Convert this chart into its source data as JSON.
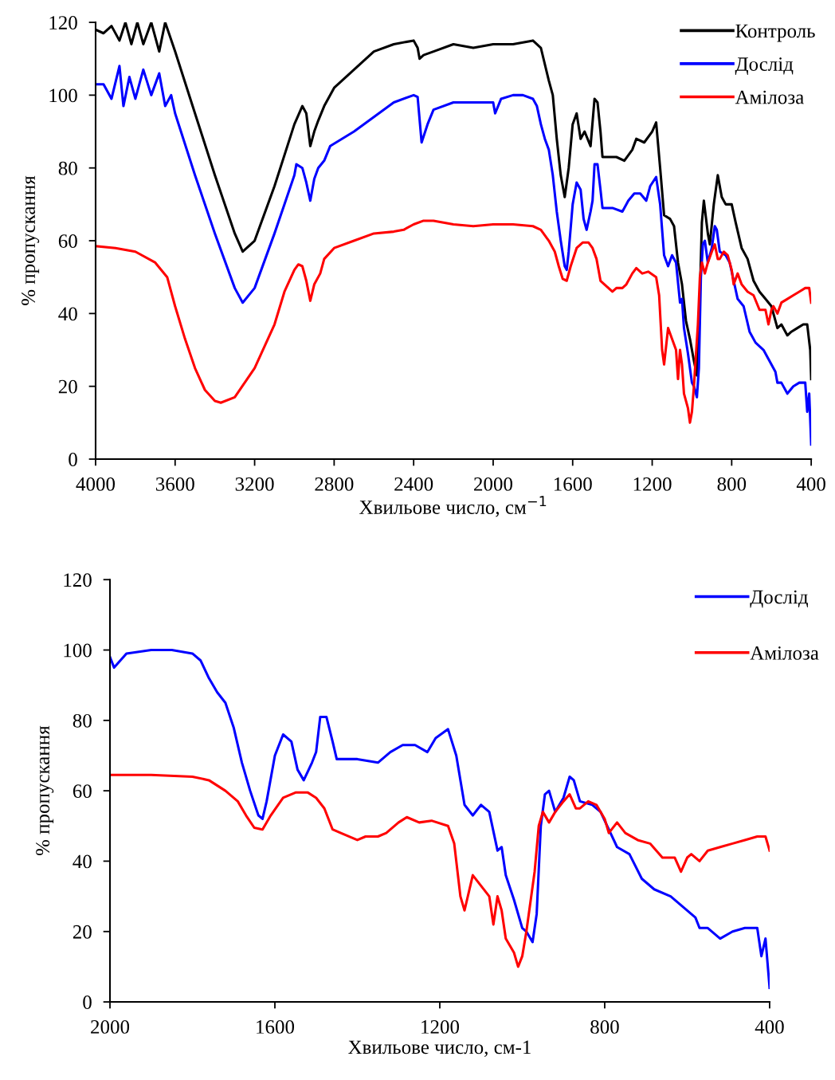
{
  "chart_data": [
    {
      "type": "line",
      "xlabel": "Хвильове число, см$^{−1}$",
      "ylabel": "% пропускання",
      "xlim": [
        4000,
        400
      ],
      "xticks": [
        4000,
        3600,
        3200,
        2800,
        2400,
        2000,
        1600,
        1200,
        800,
        400
      ],
      "ylim": [
        0,
        120
      ],
      "yticks": [
        0,
        20,
        40,
        60,
        80,
        100,
        120
      ],
      "grid": false,
      "legend": "top right",
      "marker": "none",
      "line_style": "solid",
      "series": [
        {
          "name": "Контроль",
          "color": "#000000",
          "x": [
            4000,
            3960,
            3920,
            3880,
            3850,
            3820,
            3790,
            3760,
            3720,
            3680,
            3650,
            3600,
            3500,
            3400,
            3300,
            3260,
            3200,
            3100,
            3000,
            2960,
            2940,
            2920,
            2900,
            2880,
            2850,
            2800,
            2700,
            2600,
            2500,
            2400,
            2380,
            2370,
            2350,
            2300,
            2200,
            2100,
            2000,
            1900,
            1800,
            1760,
            1720,
            1700,
            1680,
            1660,
            1640,
            1620,
            1600,
            1580,
            1560,
            1540,
            1510,
            1490,
            1475,
            1460,
            1450,
            1420,
            1380,
            1340,
            1300,
            1280,
            1240,
            1200,
            1180,
            1160,
            1140,
            1110,
            1090,
            1070,
            1050,
            1030,
            1010,
            990,
            975,
            960,
            950,
            940,
            920,
            910,
            890,
            870,
            850,
            830,
            800,
            780,
            750,
            720,
            690,
            660,
            630,
            600,
            570,
            550,
            520,
            500,
            470,
            440,
            420,
            405,
            400
          ],
          "values": [
            118,
            117,
            119,
            115,
            120,
            114,
            120,
            114,
            120,
            112,
            120,
            112,
            95,
            78,
            62,
            57,
            60,
            75,
            92,
            97,
            95,
            86,
            90,
            93,
            97,
            102,
            107,
            112,
            114,
            115,
            113,
            110,
            111,
            112,
            114,
            113,
            114,
            114,
            115,
            113,
            104,
            100,
            88,
            78,
            72,
            80,
            92,
            95,
            88,
            90,
            86,
            99,
            98,
            90,
            83,
            83,
            83,
            82,
            85,
            88,
            87,
            90,
            92.5,
            80,
            67,
            66,
            64,
            54,
            48,
            38,
            33,
            27,
            23,
            45,
            65,
            71,
            62,
            59,
            70,
            78,
            72,
            70,
            70,
            65,
            58,
            55,
            49,
            46,
            44,
            42,
            36,
            37,
            34,
            35,
            36,
            37,
            37,
            30,
            22
          ]
        },
        {
          "name": "Дослід",
          "color": "#0000ff",
          "x": [
            4000,
            3960,
            3920,
            3880,
            3860,
            3830,
            3800,
            3760,
            3720,
            3680,
            3650,
            3620,
            3600,
            3500,
            3400,
            3300,
            3260,
            3200,
            3100,
            3000,
            2990,
            2960,
            2940,
            2920,
            2900,
            2880,
            2850,
            2820,
            2700,
            2600,
            2500,
            2400,
            2380,
            2360,
            2330,
            2300,
            2200,
            2100,
            2000,
            1990,
            1960,
            1900,
            1850,
            1800,
            1780,
            1760,
            1740,
            1720,
            1700,
            1680,
            1660,
            1640,
            1630,
            1620,
            1600,
            1580,
            1560,
            1545,
            1530,
            1510,
            1500,
            1490,
            1475,
            1460,
            1450,
            1430,
            1400,
            1350,
            1320,
            1290,
            1260,
            1230,
            1210,
            1180,
            1160,
            1140,
            1120,
            1100,
            1080,
            1060,
            1050,
            1040,
            1020,
            1000,
            990,
            975,
            965,
            955,
            945,
            935,
            920,
            900,
            885,
            875,
            860,
            830,
            810,
            790,
            770,
            740,
            710,
            680,
            640,
            610,
            580,
            570,
            550,
            520,
            490,
            460,
            430,
            420,
            410,
            400
          ],
          "values": [
            103,
            103,
            99,
            108,
            97,
            105,
            99,
            107,
            100,
            106,
            97,
            100,
            95,
            78,
            62,
            47,
            43,
            47,
            62,
            78,
            81,
            80,
            76,
            71,
            77,
            80,
            82,
            86,
            90,
            94,
            98,
            100,
            99.5,
            87,
            92,
            96,
            98,
            98,
            98,
            95,
            99,
            100,
            100,
            99,
            97,
            92,
            88,
            85,
            78,
            68,
            60,
            53,
            52,
            57,
            70,
            76,
            74,
            66,
            63,
            68,
            71,
            81,
            81,
            74,
            69,
            69,
            69,
            68,
            71,
            73,
            73,
            71,
            75,
            77.5,
            70,
            56,
            53,
            56,
            54,
            43,
            44,
            36,
            29,
            21,
            20,
            17,
            25,
            50,
            59,
            60,
            54,
            58,
            64,
            63,
            57,
            56,
            54,
            49,
            44,
            42,
            35,
            32,
            30,
            27,
            24,
            21,
            21,
            18,
            20,
            21,
            21,
            13,
            18,
            4
          ]
        },
        {
          "name": "Амілоза",
          "color": "#ff0000",
          "x": [
            4000,
            3900,
            3800,
            3700,
            3640,
            3600,
            3550,
            3500,
            3450,
            3400,
            3370,
            3300,
            3200,
            3100,
            3050,
            3000,
            2980,
            2960,
            2940,
            2920,
            2900,
            2870,
            2850,
            2800,
            2700,
            2600,
            2500,
            2450,
            2400,
            2350,
            2300,
            2200,
            2100,
            2000,
            1900,
            1800,
            1760,
            1720,
            1690,
            1670,
            1650,
            1630,
            1610,
            1580,
            1550,
            1520,
            1500,
            1480,
            1460,
            1440,
            1400,
            1380,
            1350,
            1330,
            1300,
            1280,
            1250,
            1220,
            1180,
            1165,
            1150,
            1140,
            1120,
            1100,
            1080,
            1070,
            1060,
            1050,
            1040,
            1020,
            1010,
            1000,
            990,
            970,
            960,
            950,
            935,
            920,
            900,
            885,
            870,
            860,
            840,
            820,
            800,
            790,
            770,
            750,
            720,
            690,
            660,
            630,
            615,
            600,
            590,
            570,
            550,
            520,
            490,
            460,
            430,
            410,
            400
          ],
          "values": [
            58.5,
            58,
            57,
            54,
            50,
            42,
            33,
            25,
            19,
            16,
            15.5,
            17,
            25,
            37,
            46,
            52,
            53.5,
            53,
            49,
            43.5,
            48,
            51,
            55,
            58,
            60,
            62,
            62.5,
            63,
            64.5,
            65.5,
            65.5,
            64.5,
            64,
            64.5,
            64.5,
            64,
            63,
            60,
            57,
            53,
            49.5,
            49,
            53,
            58,
            59.5,
            59.5,
            58,
            55,
            49,
            48,
            46,
            47,
            47,
            48,
            51,
            52.5,
            51,
            51.5,
            50,
            45,
            30,
            26,
            36,
            33,
            30,
            22,
            30,
            26,
            18,
            14,
            10,
            13,
            20,
            37,
            50,
            54,
            51,
            54,
            57,
            59,
            55,
            55,
            57,
            56,
            52,
            48,
            51,
            48,
            46,
            45,
            41,
            41,
            37,
            41,
            42,
            40,
            43,
            44,
            45,
            46,
            47,
            47,
            43
          ]
        }
      ]
    },
    {
      "type": "line",
      "xlabel": "Хвильове число, см-1",
      "ylabel": "% пропускання",
      "xlim": [
        2000,
        400
      ],
      "xticks": [
        2000,
        1600,
        1200,
        800,
        400
      ],
      "ylim": [
        0,
        120
      ],
      "yticks": [
        0,
        20,
        40,
        60,
        80,
        100,
        120
      ],
      "grid": false,
      "legend": "top right",
      "marker": "none",
      "line_style": "solid",
      "series": [
        {
          "name": "Дослід",
          "color": "#0000ff",
          "x": [
            2000,
            1990,
            1960,
            1900,
            1850,
            1800,
            1780,
            1760,
            1740,
            1720,
            1700,
            1680,
            1660,
            1640,
            1630,
            1620,
            1600,
            1580,
            1560,
            1545,
            1530,
            1510,
            1500,
            1490,
            1475,
            1460,
            1450,
            1430,
            1400,
            1350,
            1320,
            1290,
            1260,
            1230,
            1210,
            1180,
            1160,
            1140,
            1120,
            1100,
            1080,
            1060,
            1050,
            1040,
            1020,
            1000,
            990,
            975,
            965,
            955,
            945,
            935,
            920,
            900,
            885,
            875,
            860,
            830,
            810,
            790,
            770,
            740,
            710,
            680,
            640,
            610,
            580,
            570,
            550,
            520,
            490,
            460,
            430,
            420,
            410,
            400
          ],
          "values": [
            98,
            95,
            99,
            100,
            100,
            99,
            97,
            92,
            88,
            85,
            78,
            68,
            60,
            53,
            52,
            57,
            70,
            76,
            74,
            66,
            63,
            68,
            71,
            81,
            81,
            74,
            69,
            69,
            69,
            68,
            71,
            73,
            73,
            71,
            75,
            77.5,
            70,
            56,
            53,
            56,
            54,
            43,
            44,
            36,
            29,
            21,
            20,
            17,
            25,
            50,
            59,
            60,
            54,
            58,
            64,
            63,
            57,
            56,
            54,
            49,
            44,
            42,
            35,
            32,
            30,
            27,
            24,
            21,
            21,
            18,
            20,
            21,
            21,
            13,
            18,
            4
          ]
        },
        {
          "name": "Амілоза",
          "color": "#ff0000",
          "x": [
            2000,
            1900,
            1800,
            1760,
            1720,
            1690,
            1670,
            1650,
            1630,
            1610,
            1580,
            1550,
            1520,
            1500,
            1480,
            1460,
            1440,
            1400,
            1380,
            1350,
            1330,
            1300,
            1280,
            1250,
            1220,
            1180,
            1165,
            1150,
            1140,
            1120,
            1100,
            1080,
            1070,
            1060,
            1050,
            1040,
            1020,
            1010,
            1000,
            990,
            970,
            960,
            950,
            935,
            920,
            900,
            885,
            870,
            860,
            840,
            820,
            800,
            790,
            770,
            750,
            720,
            690,
            660,
            630,
            615,
            600,
            590,
            570,
            550,
            520,
            490,
            460,
            430,
            410,
            400
          ],
          "values": [
            64.5,
            64.5,
            64,
            63,
            60,
            57,
            53,
            49.5,
            49,
            53,
            58,
            59.5,
            59.5,
            58,
            55,
            49,
            48,
            46,
            47,
            47,
            48,
            51,
            52.5,
            51,
            51.5,
            50,
            45,
            30,
            26,
            36,
            33,
            30,
            22,
            30,
            26,
            18,
            14,
            10,
            13,
            20,
            37,
            50,
            54,
            51,
            54,
            57,
            59,
            55,
            55,
            57,
            56,
            52,
            48,
            51,
            48,
            46,
            45,
            41,
            41,
            37,
            41,
            42,
            40,
            43,
            44,
            45,
            46,
            47,
            47,
            43
          ]
        }
      ]
    }
  ]
}
